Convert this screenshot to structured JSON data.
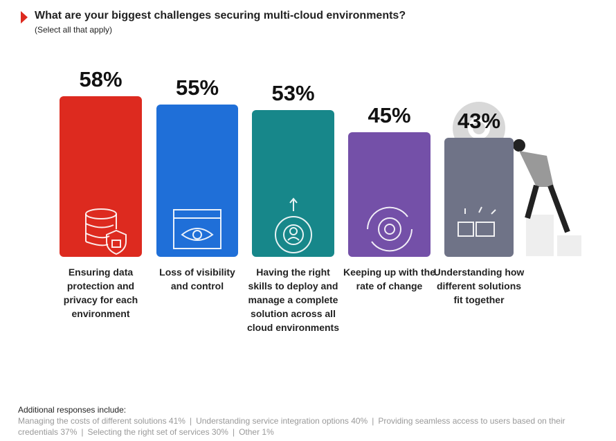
{
  "chart_data": {
    "type": "bar",
    "title": "What are your biggest challenges securing multi-cloud environments?",
    "subtitle": "(Select all that apply)",
    "categories": [
      "Ensuring data protection and privacy for each environment",
      "Loss of visibility and control",
      "Having the right skills to deploy and manage a complete solution across all cloud environments",
      "Keeping up with the rate of change",
      "Understanding how different solutions fit together"
    ],
    "values": [
      58,
      55,
      53,
      45,
      43
    ],
    "value_labels": [
      "58%",
      "55%",
      "53%",
      "45%",
      "43%"
    ],
    "colors": [
      "#dd2a1f",
      "#1f6fd8",
      "#17878a",
      "#7450a8",
      "#6f7387"
    ],
    "notes_title": "Additional responses include:",
    "notes": [
      "Managing the costs of different solutions 41%",
      "Understanding service integration options 40%",
      "Providing seamless access to users based on their credentials 37%",
      "Selecting the right set of services 30%",
      "Other 1%"
    ]
  }
}
